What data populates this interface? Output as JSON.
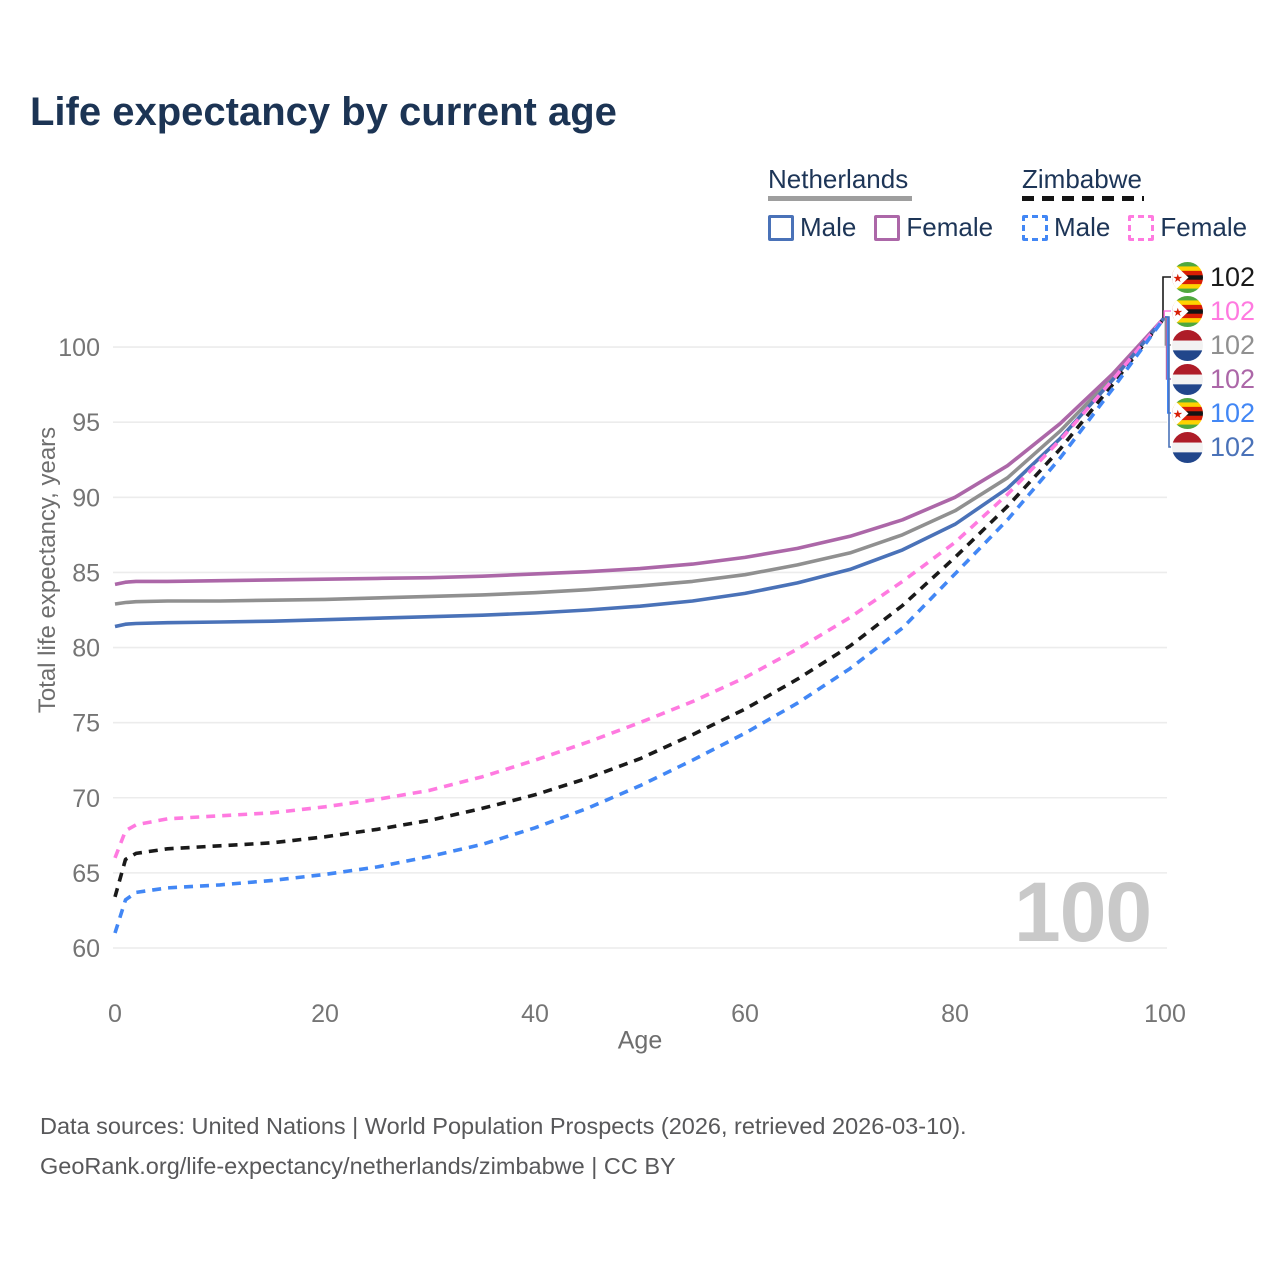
{
  "title": "Life expectancy by current age",
  "watermark": "100",
  "legend": {
    "groups": [
      {
        "label": "Netherlands",
        "line_style": "solid",
        "line_color": "#9e9e9e",
        "items": [
          {
            "label": "Male",
            "color": "#4a72b8"
          },
          {
            "label": "Female",
            "color": "#ac67a8"
          }
        ]
      },
      {
        "label": "Zimbabwe",
        "line_style": "dashed",
        "line_color": "#141414",
        "items": [
          {
            "label": "Male",
            "color": "#4287f5"
          },
          {
            "label": "Female",
            "color": "#ff7ae0"
          }
        ]
      }
    ]
  },
  "footer": {
    "line1": "Data sources: United Nations | World Population Prospects (2026, retrieved 2026-03-10).",
    "line2": "GeoRank.org/life-expectancy/netherlands/zimbabwe | CC BY"
  },
  "chart_data": {
    "type": "line",
    "title": "Life expectancy by current age",
    "xlabel": "Age",
    "ylabel": "Total life expectancy, years",
    "xlim": [
      0,
      100
    ],
    "ylim": [
      60,
      102
    ],
    "x_ticks": [
      0,
      20,
      40,
      60,
      80,
      100
    ],
    "y_ticks": [
      60,
      65,
      70,
      75,
      80,
      85,
      90,
      95,
      100
    ],
    "grid": "horizontal",
    "legend_position": "top-right",
    "ages": [
      0,
      1,
      2,
      5,
      10,
      15,
      20,
      25,
      30,
      35,
      40,
      45,
      50,
      55,
      60,
      65,
      70,
      75,
      80,
      85,
      90,
      95,
      100
    ],
    "series": [
      {
        "name": "Netherlands",
        "country": "Netherlands",
        "sex": "All",
        "color": "#909090",
        "dash": "solid",
        "values": [
          82.9,
          83.0,
          83.05,
          83.1,
          83.1,
          83.15,
          83.2,
          83.3,
          83.4,
          83.5,
          83.65,
          83.85,
          84.1,
          84.4,
          84.85,
          85.5,
          86.3,
          87.5,
          89.1,
          91.3,
          94.4,
          98.0,
          102
        ]
      },
      {
        "name": "Netherlands Female",
        "country": "Netherlands",
        "sex": "Female",
        "color": "#ac67a8",
        "dash": "solid",
        "values": [
          84.2,
          84.35,
          84.4,
          84.4,
          84.45,
          84.5,
          84.55,
          84.6,
          84.65,
          84.75,
          84.9,
          85.05,
          85.25,
          85.55,
          86.0,
          86.6,
          87.4,
          88.5,
          90.0,
          92.1,
          94.9,
          98.2,
          102
        ]
      },
      {
        "name": "Netherlands Male",
        "country": "Netherlands",
        "sex": "Male",
        "color": "#4a72b8",
        "dash": "solid",
        "values": [
          81.4,
          81.55,
          81.6,
          81.65,
          81.7,
          81.75,
          81.85,
          81.95,
          82.05,
          82.15,
          82.3,
          82.5,
          82.75,
          83.1,
          83.6,
          84.3,
          85.2,
          86.5,
          88.2,
          90.6,
          93.9,
          97.8,
          102
        ]
      },
      {
        "name": "Zimbabwe",
        "country": "Zimbabwe",
        "sex": "All",
        "color": "#1a1a1a",
        "dash": "dashed",
        "values": [
          63.4,
          65.9,
          66.3,
          66.6,
          66.8,
          67.0,
          67.4,
          67.9,
          68.5,
          69.3,
          70.2,
          71.3,
          72.6,
          74.2,
          75.9,
          77.9,
          80.1,
          82.8,
          86.0,
          89.4,
          93.2,
          97.5,
          102
        ]
      },
      {
        "name": "Zimbabwe Female",
        "country": "Zimbabwe",
        "sex": "Female",
        "color": "#ff7ae0",
        "dash": "dashed",
        "values": [
          66.0,
          67.8,
          68.2,
          68.6,
          68.8,
          69.0,
          69.4,
          69.9,
          70.5,
          71.4,
          72.5,
          73.7,
          75.0,
          76.4,
          78.0,
          79.9,
          82.0,
          84.4,
          87.0,
          90.2,
          93.8,
          97.8,
          102
        ]
      },
      {
        "name": "Zimbabwe Male",
        "country": "Zimbabwe",
        "sex": "Male",
        "color": "#4287f5",
        "dash": "dashed",
        "values": [
          61.0,
          63.2,
          63.7,
          64.0,
          64.2,
          64.5,
          64.9,
          65.4,
          66.1,
          66.9,
          68.0,
          69.3,
          70.8,
          72.5,
          74.3,
          76.3,
          78.6,
          81.3,
          84.9,
          88.5,
          92.6,
          97.2,
          102
        ]
      }
    ],
    "end_labels": [
      {
        "series": "Zimbabwe",
        "flag": "zimbabwe",
        "value": "102",
        "color": "#1a1a1a"
      },
      {
        "series": "Zimbabwe Female",
        "flag": "zimbabwe",
        "value": "102",
        "color": "#ff7ae0"
      },
      {
        "series": "Netherlands",
        "flag": "netherlands",
        "value": "102",
        "color": "#909090"
      },
      {
        "series": "Netherlands Female",
        "flag": "netherlands",
        "value": "102",
        "color": "#ac67a8"
      },
      {
        "series": "Zimbabwe Male",
        "flag": "zimbabwe",
        "value": "102",
        "color": "#4287f5"
      },
      {
        "series": "Netherlands Male",
        "flag": "netherlands",
        "value": "102",
        "color": "#4a72b8"
      }
    ]
  }
}
